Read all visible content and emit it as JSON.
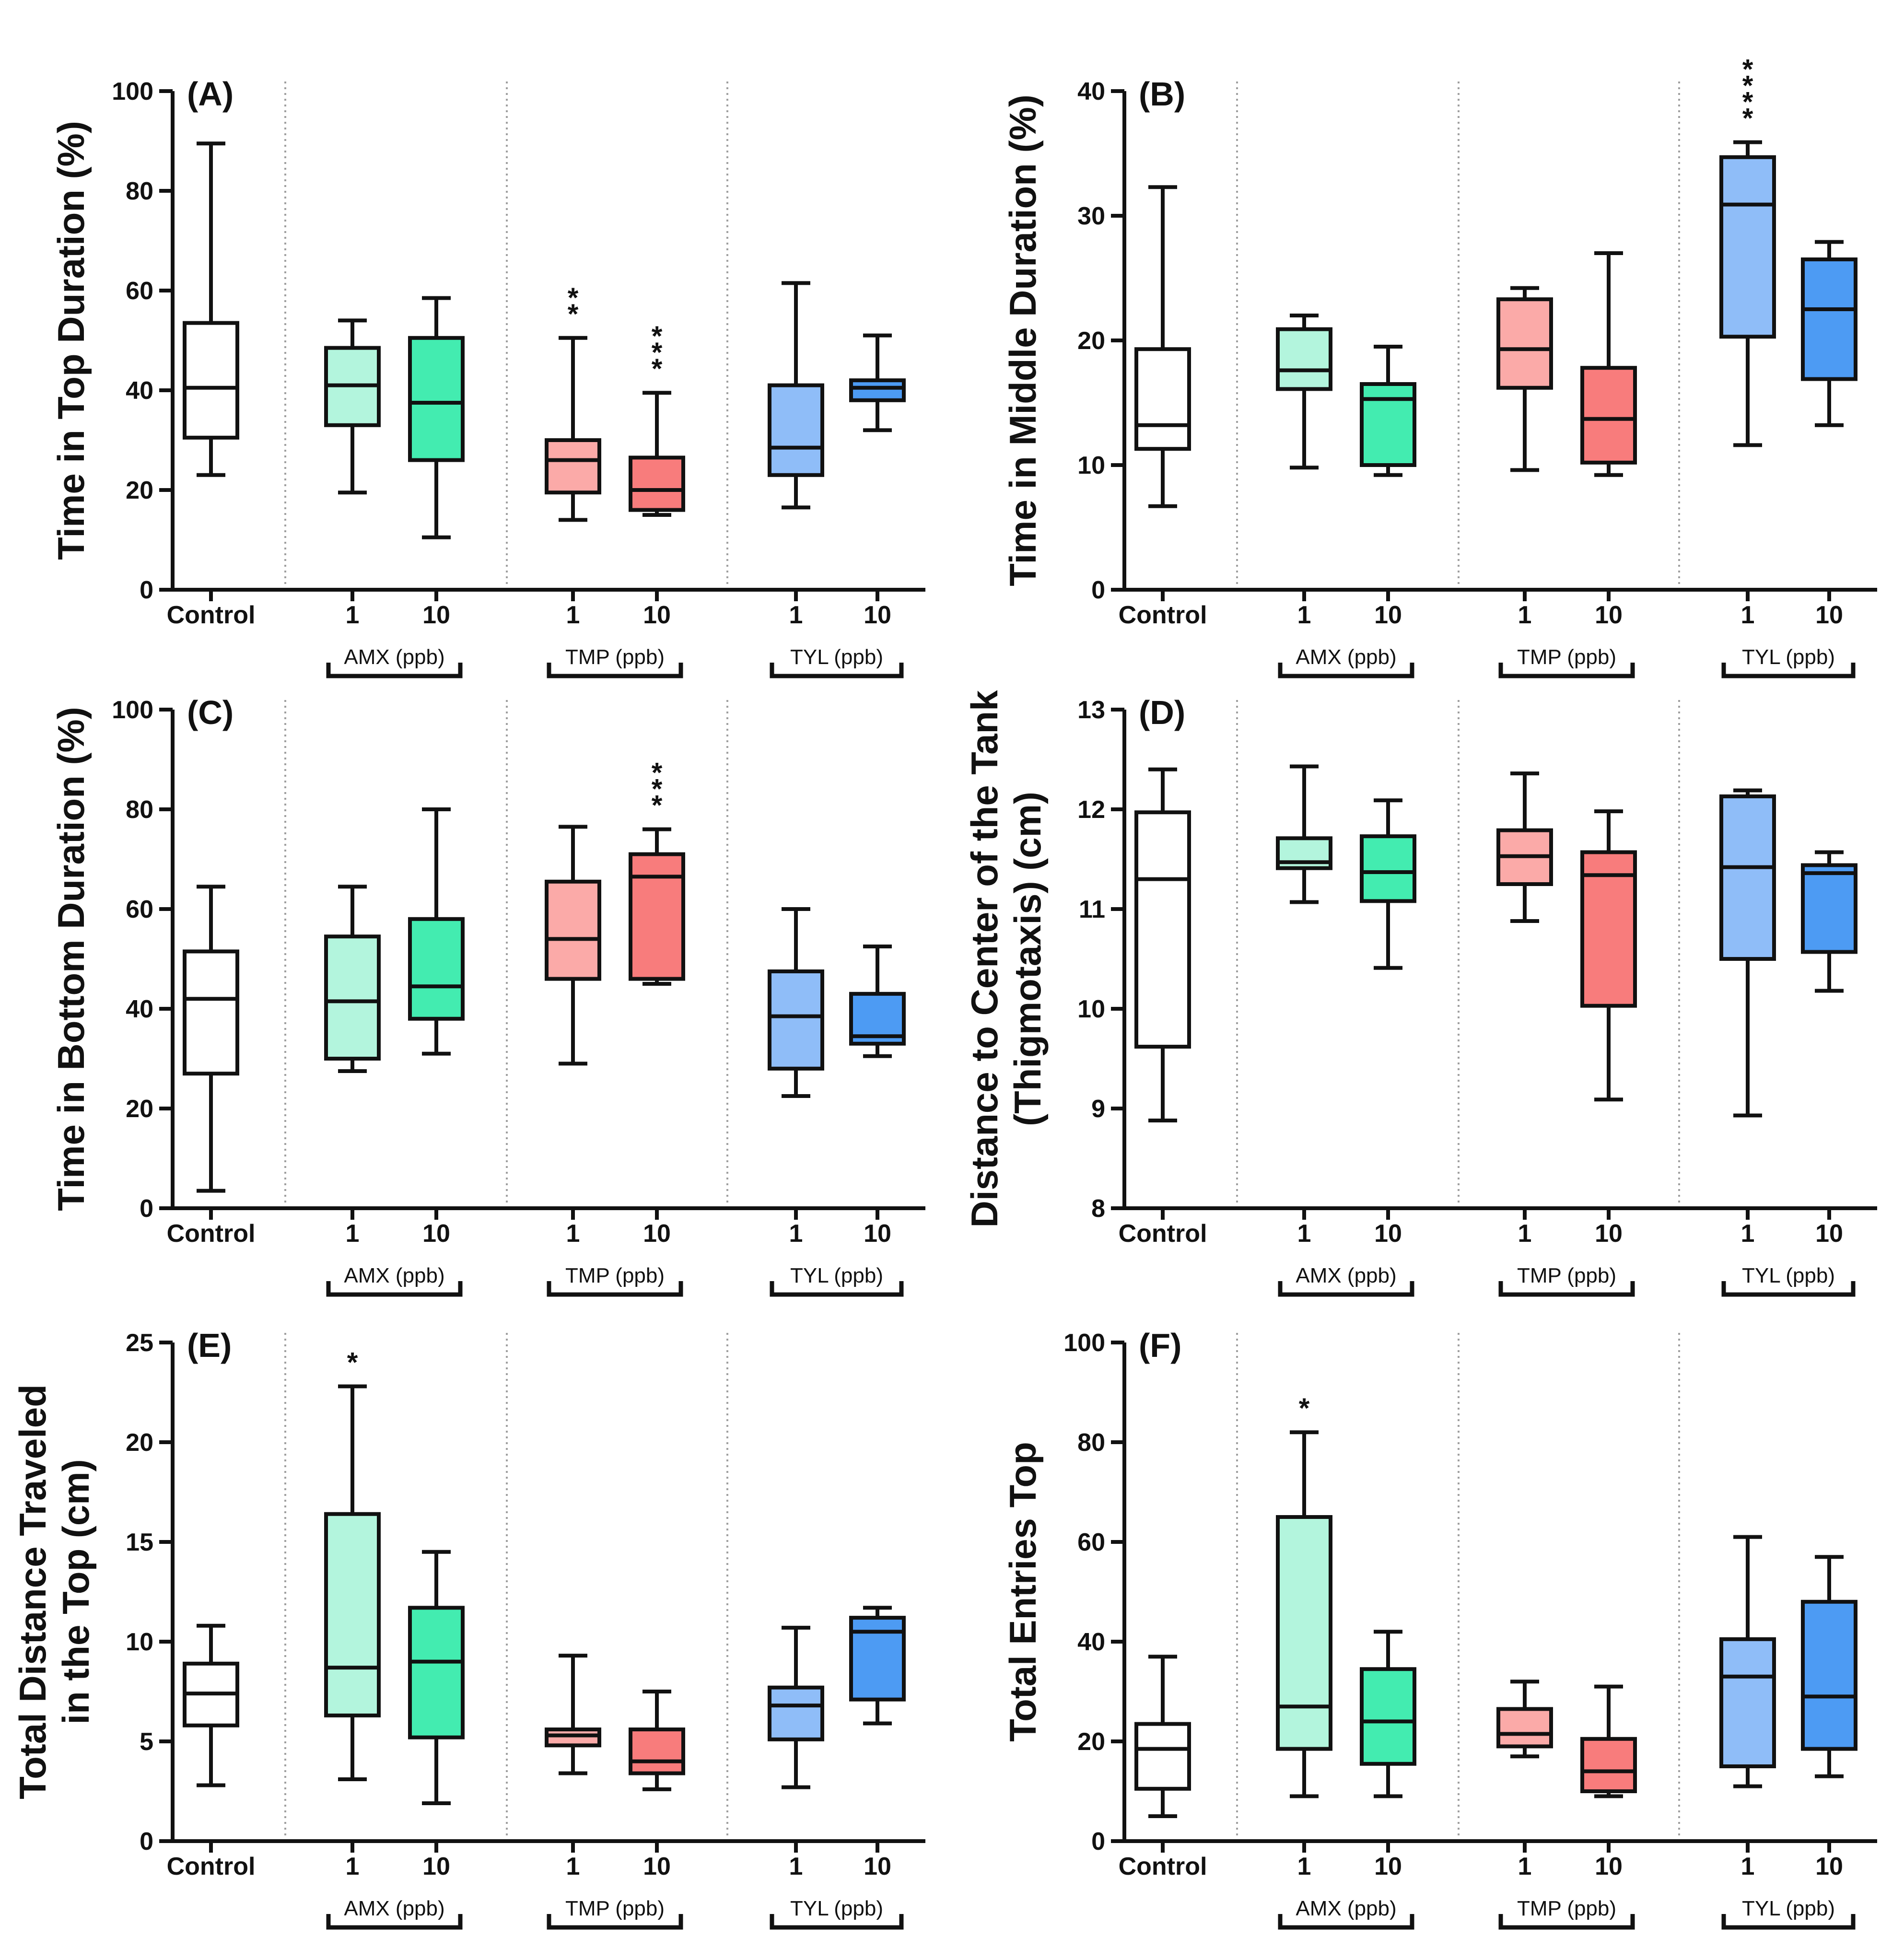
{
  "figure": {
    "categories": [
      "Control",
      "1",
      "10",
      "1",
      "10",
      "1",
      "10"
    ],
    "groups": [
      {
        "label": "AMX (ppb)"
      },
      {
        "label": "TMP (ppb)"
      },
      {
        "label": "TYL (ppb)"
      }
    ],
    "colors": {
      "control": "#ffffff",
      "amx_1": "#b3f5dd",
      "amx_10": "#43ecb0",
      "tmp_1": "#fbaaa8",
      "tmp_10": "#f87c7c",
      "tyl_1": "#8fbdf8",
      "tyl_10": "#4d9bf3",
      "stroke": "#111111",
      "separator": "#a0a0a0"
    }
  },
  "chart_data": [
    {
      "type": "box",
      "panel": "(A)",
      "ylabel": "Time in Top Duration (%)",
      "ylim": [
        0,
        100
      ],
      "yticks": [
        "0",
        "20",
        "40",
        "60",
        "80",
        "100"
      ],
      "series": [
        {
          "name": "Control",
          "min": 23,
          "q1": 30.5,
          "median": 40.5,
          "q3": 53.5,
          "max": 89.5,
          "sig": ""
        },
        {
          "name": "AMX 1",
          "min": 19.5,
          "q1": 33,
          "median": 41,
          "q3": 48.5,
          "max": 54,
          "sig": ""
        },
        {
          "name": "AMX 10",
          "min": 10.5,
          "q1": 26,
          "median": 37.5,
          "q3": 50.5,
          "max": 58.5,
          "sig": ""
        },
        {
          "name": "TMP 1",
          "min": 14,
          "q1": 19.5,
          "median": 26,
          "q3": 30,
          "max": 50.5,
          "sig": "**"
        },
        {
          "name": "TMP 10",
          "min": 15,
          "q1": 16,
          "median": 20,
          "q3": 26.5,
          "max": 39.5,
          "sig": "***"
        },
        {
          "name": "TYL 1",
          "min": 16.5,
          "q1": 23,
          "median": 28.5,
          "q3": 41,
          "max": 61.5,
          "sig": ""
        },
        {
          "name": "TYL 10",
          "min": 32,
          "q1": 38,
          "median": 40.5,
          "q3": 42,
          "max": 51,
          "sig": ""
        }
      ]
    },
    {
      "type": "box",
      "panel": "(B)",
      "ylabel": "Time in Middle Duration (%)",
      "ylim": [
        0,
        40
      ],
      "yticks": [
        "0",
        "10",
        "20",
        "30",
        "40"
      ],
      "series": [
        {
          "name": "Control",
          "min": 6.7,
          "q1": 11.3,
          "median": 13.2,
          "q3": 19.3,
          "max": 32.3,
          "sig": ""
        },
        {
          "name": "AMX 1",
          "min": 9.8,
          "q1": 16.1,
          "median": 17.6,
          "q3": 20.9,
          "max": 22.0,
          "sig": ""
        },
        {
          "name": "AMX 10",
          "min": 9.2,
          "q1": 10.0,
          "median": 15.3,
          "q3": 16.5,
          "max": 19.5,
          "sig": ""
        },
        {
          "name": "TMP 1",
          "min": 9.6,
          "q1": 16.2,
          "median": 19.3,
          "q3": 23.3,
          "max": 24.2,
          "sig": ""
        },
        {
          "name": "TMP 10",
          "min": 9.2,
          "q1": 10.2,
          "median": 13.7,
          "q3": 17.8,
          "max": 27.0,
          "sig": ""
        },
        {
          "name": "TYL 1",
          "min": 11.6,
          "q1": 20.3,
          "median": 30.9,
          "q3": 34.7,
          "max": 35.9,
          "sig": "****"
        },
        {
          "name": "TYL 10",
          "min": 13.2,
          "q1": 16.9,
          "median": 22.5,
          "q3": 26.5,
          "max": 27.9,
          "sig": ""
        }
      ]
    },
    {
      "type": "box",
      "panel": "(C)",
      "ylabel": "Time in Bottom Duration (%)",
      "ylim": [
        0,
        100
      ],
      "yticks": [
        "0",
        "20",
        "40",
        "60",
        "80",
        "100"
      ],
      "series": [
        {
          "name": "Control",
          "min": 3.5,
          "q1": 27,
          "median": 42,
          "q3": 51.5,
          "max": 64.5,
          "sig": ""
        },
        {
          "name": "AMX 1",
          "min": 27.5,
          "q1": 30,
          "median": 41.5,
          "q3": 54.5,
          "max": 64.5,
          "sig": ""
        },
        {
          "name": "AMX 10",
          "min": 31,
          "q1": 38,
          "median": 44.5,
          "q3": 58,
          "max": 80,
          "sig": ""
        },
        {
          "name": "TMP 1",
          "min": 29,
          "q1": 46,
          "median": 54,
          "q3": 65.5,
          "max": 76.5,
          "sig": ""
        },
        {
          "name": "TMP 10",
          "min": 45,
          "q1": 46,
          "median": 66.5,
          "q3": 71,
          "max": 76,
          "sig": "***"
        },
        {
          "name": "TYL 1",
          "min": 22.5,
          "q1": 28,
          "median": 38.5,
          "q3": 47.5,
          "max": 60,
          "sig": ""
        },
        {
          "name": "TYL 10",
          "min": 30.5,
          "q1": 33,
          "median": 34.5,
          "q3": 43,
          "max": 52.5,
          "sig": ""
        }
      ]
    },
    {
      "type": "box",
      "panel": "(D)",
      "ylabel": "Distance to Center of the Tank (Thigmotaxis) (cm)",
      "ylabel_lines": [
        "Distance to Center of the Tank",
        "(Thigmotaxis) (cm)"
      ],
      "ylim": [
        8,
        13
      ],
      "yticks": [
        "8",
        "9",
        "10",
        "11",
        "12",
        "13"
      ],
      "series": [
        {
          "name": "Control",
          "min": 8.88,
          "q1": 9.62,
          "median": 11.3,
          "q3": 11.97,
          "max": 12.4,
          "sig": ""
        },
        {
          "name": "AMX 1",
          "min": 11.07,
          "q1": 11.41,
          "median": 11.47,
          "q3": 11.71,
          "max": 12.43,
          "sig": ""
        },
        {
          "name": "AMX 10",
          "min": 10.41,
          "q1": 11.08,
          "median": 11.37,
          "q3": 11.73,
          "max": 12.09,
          "sig": ""
        },
        {
          "name": "TMP 1",
          "min": 10.88,
          "q1": 11.25,
          "median": 11.53,
          "q3": 11.79,
          "max": 12.36,
          "sig": ""
        },
        {
          "name": "TMP 10",
          "min": 9.09,
          "q1": 10.03,
          "median": 11.34,
          "q3": 11.57,
          "max": 11.98,
          "sig": ""
        },
        {
          "name": "TYL 1",
          "min": 8.93,
          "q1": 10.5,
          "median": 11.42,
          "q3": 12.13,
          "max": 12.19,
          "sig": ""
        },
        {
          "name": "TYL 10",
          "min": 10.18,
          "q1": 10.57,
          "median": 11.36,
          "q3": 11.44,
          "max": 11.57,
          "sig": ""
        }
      ]
    },
    {
      "type": "box",
      "panel": "(E)",
      "ylabel": "Total Distance Traveled in the Top (cm)",
      "ylabel_lines": [
        "Total Distance Traveled",
        "in the Top (cm)"
      ],
      "ylim": [
        0,
        25
      ],
      "yticks": [
        "0",
        "5",
        "10",
        "15",
        "20",
        "25"
      ],
      "series": [
        {
          "name": "Control",
          "min": 2.8,
          "q1": 5.8,
          "median": 7.4,
          "q3": 8.9,
          "max": 10.8,
          "sig": ""
        },
        {
          "name": "AMX 1",
          "min": 3.1,
          "q1": 6.3,
          "median": 8.7,
          "q3": 16.4,
          "max": 22.8,
          "sig": "*"
        },
        {
          "name": "AMX 10",
          "min": 1.9,
          "q1": 5.2,
          "median": 9.0,
          "q3": 11.7,
          "max": 14.5,
          "sig": ""
        },
        {
          "name": "TMP 1",
          "min": 3.4,
          "q1": 4.8,
          "median": 5.3,
          "q3": 5.6,
          "max": 9.3,
          "sig": ""
        },
        {
          "name": "TMP 10",
          "min": 2.6,
          "q1": 3.4,
          "median": 4.0,
          "q3": 5.6,
          "max": 7.5,
          "sig": ""
        },
        {
          "name": "TYL 1",
          "min": 2.7,
          "q1": 5.1,
          "median": 6.8,
          "q3": 7.7,
          "max": 10.7,
          "sig": ""
        },
        {
          "name": "TYL 10",
          "min": 5.9,
          "q1": 7.1,
          "median": 10.5,
          "q3": 11.2,
          "max": 11.7,
          "sig": ""
        }
      ]
    },
    {
      "type": "box",
      "panel": "(F)",
      "ylabel": "Total Entries Top",
      "ylim": [
        0,
        100
      ],
      "yticks": [
        "0",
        "20",
        "40",
        "60",
        "80",
        "100"
      ],
      "series": [
        {
          "name": "Control",
          "min": 5,
          "q1": 10.5,
          "median": 18.5,
          "q3": 23.5,
          "max": 37,
          "sig": ""
        },
        {
          "name": "AMX 1",
          "min": 9,
          "q1": 18.5,
          "median": 27,
          "q3": 65,
          "max": 82,
          "sig": "*"
        },
        {
          "name": "AMX 10",
          "min": 9,
          "q1": 15.5,
          "median": 24,
          "q3": 34.5,
          "max": 42,
          "sig": ""
        },
        {
          "name": "TMP 1",
          "min": 17,
          "q1": 19,
          "median": 21.5,
          "q3": 26.5,
          "max": 32,
          "sig": ""
        },
        {
          "name": "TMP 10",
          "min": 9,
          "q1": 10,
          "median": 14,
          "q3": 20.5,
          "max": 31,
          "sig": ""
        },
        {
          "name": "TYL 1",
          "min": 11,
          "q1": 15,
          "median": 33,
          "q3": 40.5,
          "max": 61,
          "sig": ""
        },
        {
          "name": "TYL 10",
          "min": 13,
          "q1": 18.5,
          "median": 29,
          "q3": 48,
          "max": 57,
          "sig": ""
        }
      ]
    }
  ]
}
